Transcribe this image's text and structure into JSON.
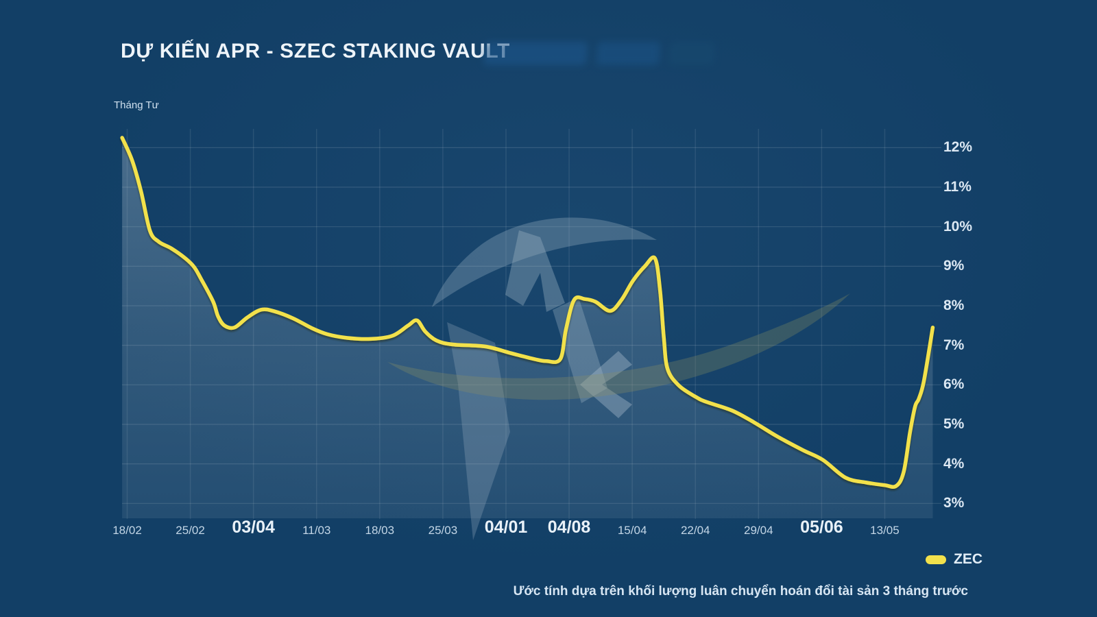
{
  "header": {
    "title": "DỰ KIẾN APR - SZEC STAKING VAULT",
    "subtitle_left": "Tháng Tư"
  },
  "legend": {
    "label": "ZEC",
    "color": "#f2e14c",
    "position": "bottom-right"
  },
  "footnote": "Ước tính dựa trên khối lượng luân chuyển hoán đổi tài sản 3 tháng trước",
  "colors": {
    "background": "#123f66",
    "line": "#f2e14c",
    "grid": "rgba(255,255,255,0.09)",
    "grid_horizontal": "rgba(255,255,255,0.13)",
    "area_fill": "180,198,212",
    "title": "#eef4f9",
    "y_label": "#dce8f3",
    "x_label_minor": "#c3d6e6",
    "x_label_major": "#e9f1f8"
  },
  "chart_data": {
    "type": "line",
    "title": "DỰ KIẾN APR - SZEC STAKING VAULT",
    "ylabel_unit": "%",
    "ylim": [
      3,
      12
    ],
    "grid": true,
    "legend_position": "bottom-right",
    "y_ticks": [
      "12%",
      "11%",
      "10%",
      "9%",
      "8%",
      "7%",
      "6%",
      "5%",
      "4%",
      "3%"
    ],
    "categories": [
      "18/02",
      "25/02",
      "03/04",
      "11/03",
      "18/03",
      "25/03",
      "04/01",
      "04/08",
      "15/04",
      "22/04",
      "29/04",
      "05/06",
      "13/05"
    ],
    "major_category_flags": [
      false,
      false,
      true,
      false,
      false,
      false,
      true,
      true,
      false,
      false,
      false,
      true,
      false
    ],
    "series": [
      {
        "name": "ZEC",
        "color": "#f2e14c",
        "values_at_ticks": [
          12.1,
          9.15,
          7.9,
          7.4,
          7.2,
          7.0,
          6.8,
          8.0,
          8.9,
          5.7,
          4.95,
          4.1,
          3.5
        ],
        "shape_points": [
          [
            -0.08,
            12.25
          ],
          [
            0.08,
            11.67
          ],
          [
            0.22,
            10.89
          ],
          [
            0.36,
            9.9
          ],
          [
            0.5,
            9.62
          ],
          [
            0.7,
            9.45
          ],
          [
            0.92,
            9.2
          ],
          [
            1.06,
            8.98
          ],
          [
            1.17,
            8.68
          ],
          [
            1.36,
            8.11
          ],
          [
            1.44,
            7.73
          ],
          [
            1.54,
            7.5
          ],
          [
            1.7,
            7.45
          ],
          [
            1.9,
            7.7
          ],
          [
            2.12,
            7.9
          ],
          [
            2.33,
            7.86
          ],
          [
            2.63,
            7.68
          ],
          [
            2.93,
            7.43
          ],
          [
            3.17,
            7.28
          ],
          [
            3.47,
            7.19
          ],
          [
            3.85,
            7.16
          ],
          [
            4.2,
            7.24
          ],
          [
            4.45,
            7.5
          ],
          [
            4.59,
            7.63
          ],
          [
            4.72,
            7.35
          ],
          [
            4.9,
            7.12
          ],
          [
            5.16,
            7.02
          ],
          [
            5.67,
            6.97
          ],
          [
            6.08,
            6.8
          ],
          [
            6.45,
            6.65
          ],
          [
            6.64,
            6.6
          ],
          [
            6.86,
            6.65
          ],
          [
            6.95,
            7.4
          ],
          [
            7.08,
            8.15
          ],
          [
            7.25,
            8.17
          ],
          [
            7.42,
            8.1
          ],
          [
            7.65,
            7.87
          ],
          [
            7.83,
            8.15
          ],
          [
            8.01,
            8.63
          ],
          [
            8.2,
            9.0
          ],
          [
            8.36,
            9.2
          ],
          [
            8.44,
            8.4
          ],
          [
            8.5,
            7.2
          ],
          [
            8.56,
            6.4
          ],
          [
            8.74,
            5.98
          ],
          [
            9.0,
            5.7
          ],
          [
            9.17,
            5.57
          ],
          [
            9.58,
            5.35
          ],
          [
            9.93,
            5.05
          ],
          [
            10.29,
            4.7
          ],
          [
            10.7,
            4.35
          ],
          [
            11.02,
            4.1
          ],
          [
            11.38,
            3.65
          ],
          [
            11.7,
            3.53
          ],
          [
            12.0,
            3.46
          ],
          [
            12.18,
            3.44
          ],
          [
            12.3,
            3.8
          ],
          [
            12.4,
            4.8
          ],
          [
            12.48,
            5.45
          ],
          [
            12.54,
            5.65
          ],
          [
            12.62,
            6.1
          ],
          [
            12.76,
            7.45
          ]
        ]
      }
    ]
  }
}
